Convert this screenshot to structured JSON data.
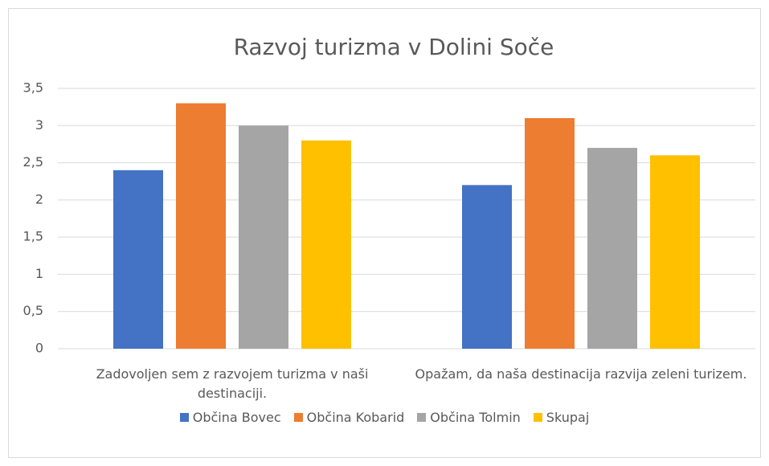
{
  "chart_data": {
    "type": "bar",
    "title": "Razvoj turizma v Dolini Soče",
    "categories": [
      "Zadovoljen sem z razvojem turizma v naši destinaciji.",
      "Opažam, da naša destinacija razvija zeleni turizem."
    ],
    "series": [
      {
        "name": "Občina Bovec",
        "color": "#4472c4",
        "values": [
          2.4,
          2.2
        ]
      },
      {
        "name": "Občina Kobarid",
        "color": "#ed7d31",
        "values": [
          3.3,
          3.1
        ]
      },
      {
        "name": "Občina Tolmin",
        "color": "#a5a5a5",
        "values": [
          3.0,
          2.7
        ]
      },
      {
        "name": "Skupaj",
        "color": "#ffc000",
        "values": [
          2.8,
          2.6
        ]
      }
    ],
    "ylim": [
      0,
      3.5
    ],
    "yticks": [
      0,
      {
        "value": 0.5,
        "label": "0,5"
      },
      1,
      {
        "value": 1.5,
        "label": "1,5"
      },
      2,
      {
        "value": 2.5,
        "label": "2,5"
      },
      3,
      {
        "value": 3.5,
        "label": "3,5"
      }
    ],
    "grid": true,
    "legend": "bottom"
  }
}
